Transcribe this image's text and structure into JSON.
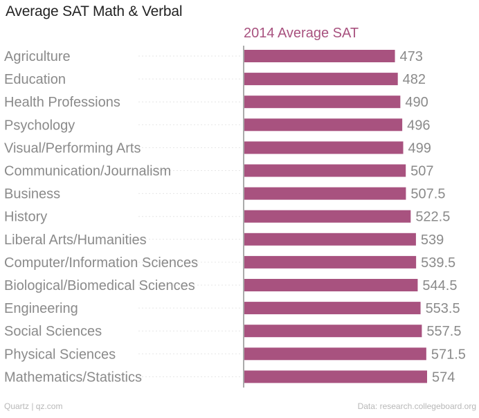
{
  "chart_data": {
    "type": "bar",
    "orientation": "horizontal",
    "title": "Average SAT Math & Verbal",
    "series_name": "2014 Average SAT",
    "categories": [
      "Agriculture",
      "Education",
      "Health Professions",
      "Psychology",
      "Visual/Performing Arts",
      "Communication/Journalism",
      "Business",
      "History",
      "Liberal Arts/Humanities",
      "Computer/Information Sciences",
      "Biological/Biomedical Sciences",
      "Engineering",
      "Social Sciences",
      "Physical Sciences",
      "Mathematics/Statistics"
    ],
    "values": [
      473,
      482,
      490,
      496,
      499,
      507,
      507.5,
      522.5,
      539,
      539.5,
      544.5,
      553.5,
      557.5,
      571.5,
      574
    ],
    "value_labels": [
      "473",
      "482",
      "490",
      "496",
      "499",
      "507",
      "507.5",
      "522.5",
      "539",
      "539.5",
      "544.5",
      "553.5",
      "557.5",
      "571.5",
      "574"
    ],
    "xlim": [
      0,
      574
    ],
    "bar_color": "#a8527f",
    "label_color": "#8a8a8a",
    "grid": false
  },
  "footer": {
    "source_left": "Quartz | qz.com",
    "source_right": "Data: research.collegeboard.org"
  }
}
